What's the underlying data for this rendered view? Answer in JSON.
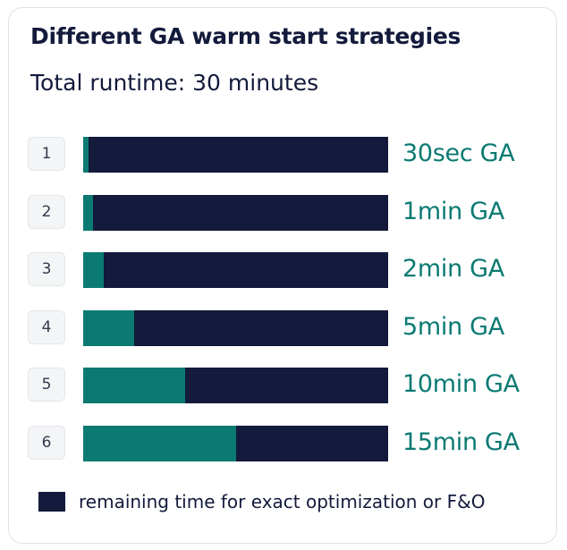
{
  "chart_data": {
    "type": "bar",
    "orientation": "horizontal",
    "stacked": true,
    "title": "Different GA warm start strategies",
    "subtitle": "Total runtime: 30 minutes",
    "row_numbers": [
      "1",
      "2",
      "3",
      "4",
      "5",
      "6"
    ],
    "categories": [
      "30sec GA",
      "1min GA",
      "2min GA",
      "5min GA",
      "10min GA",
      "15min GA"
    ],
    "total": 30,
    "series": [
      {
        "values": [
          0.5,
          1,
          2,
          5,
          10,
          15
        ],
        "color": "#0b7a72"
      },
      {
        "name": "remaining time for exact optimization or F&O",
        "values": [
          29.5,
          29,
          28,
          25,
          20,
          15
        ],
        "color": "#131a3b"
      }
    ],
    "xlim": [
      0,
      30
    ],
    "grid": false,
    "legend_position": "bottom-left"
  }
}
